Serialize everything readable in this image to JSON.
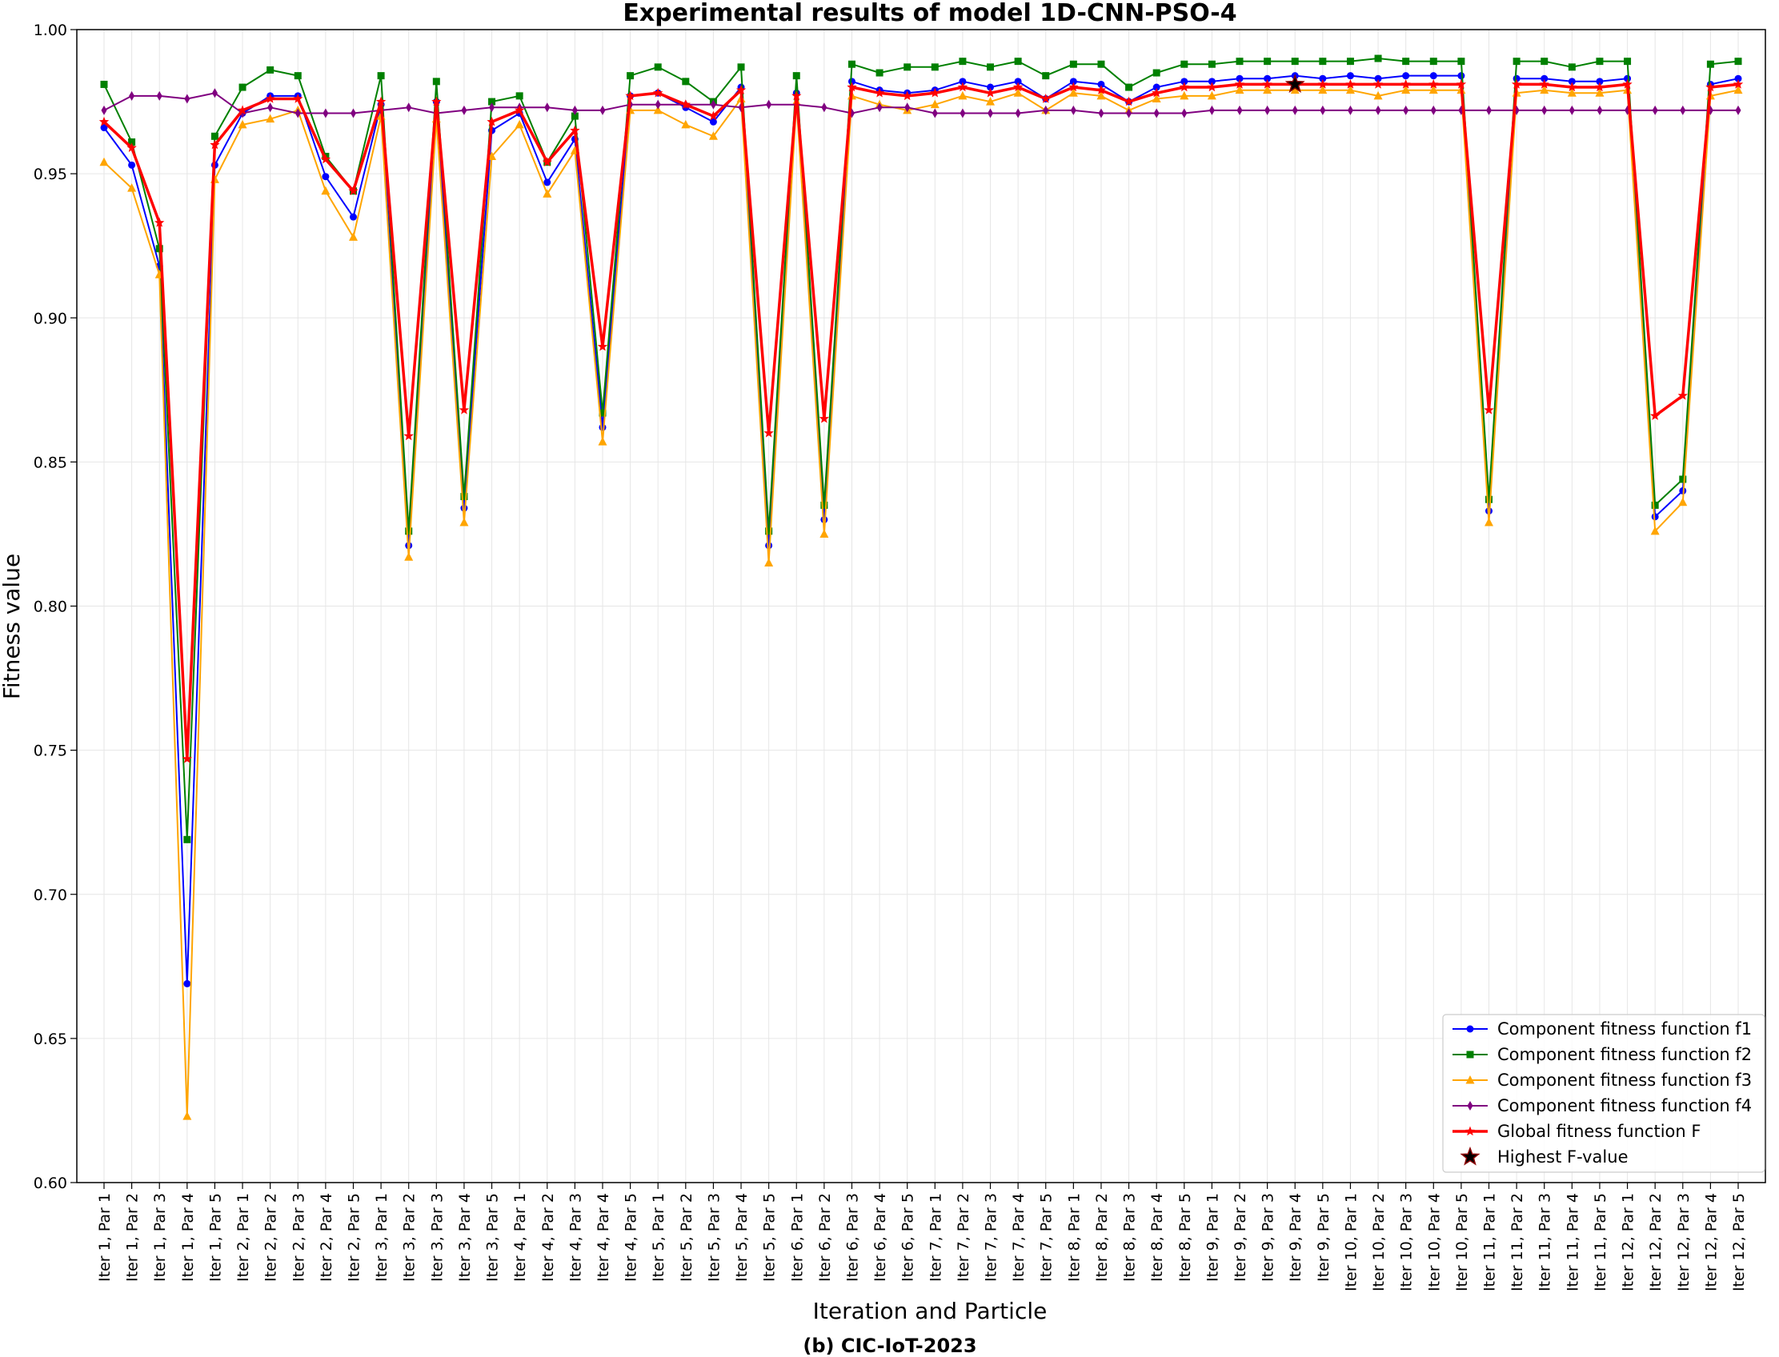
{
  "chart_data": {
    "type": "line",
    "title": "Experimental results of model 1D-CNN-PSO-4",
    "xlabel": "Iteration and Particle",
    "ylabel": "Fitness value",
    "caption": "(b) CIC-IoT-2023",
    "ylim": [
      0.6,
      1.0
    ],
    "yticks": [
      "0.60",
      "0.65",
      "0.70",
      "0.75",
      "0.80",
      "0.85",
      "0.90",
      "0.95",
      "1.00"
    ],
    "grid": true,
    "legend_position": "bottom-right",
    "categories": [
      "Iter 1, Par 1",
      "Iter 1, Par 2",
      "Iter 1, Par 3",
      "Iter 1, Par 4",
      "Iter 1, Par 5",
      "Iter 2, Par 1",
      "Iter 2, Par 2",
      "Iter 2, Par 3",
      "Iter 2, Par 4",
      "Iter 2, Par 5",
      "Iter 3, Par 1",
      "Iter 3, Par 2",
      "Iter 3, Par 3",
      "Iter 3, Par 4",
      "Iter 3, Par 5",
      "Iter 4, Par 1",
      "Iter 4, Par 2",
      "Iter 4, Par 3",
      "Iter 4, Par 4",
      "Iter 4, Par 5",
      "Iter 5, Par 1",
      "Iter 5, Par 2",
      "Iter 5, Par 3",
      "Iter 5, Par 4",
      "Iter 5, Par 5",
      "Iter 6, Par 1",
      "Iter 6, Par 2",
      "Iter 6, Par 3",
      "Iter 6, Par 4",
      "Iter 6, Par 5",
      "Iter 7, Par 1",
      "Iter 7, Par 2",
      "Iter 7, Par 3",
      "Iter 7, Par 4",
      "Iter 7, Par 5",
      "Iter 8, Par 1",
      "Iter 8, Par 2",
      "Iter 8, Par 3",
      "Iter 8, Par 4",
      "Iter 8, Par 5",
      "Iter 9, Par 1",
      "Iter 9, Par 2",
      "Iter 9, Par 3",
      "Iter 9, Par 4",
      "Iter 9, Par 5",
      "Iter 10, Par 1",
      "Iter 10, Par 2",
      "Iter 10, Par 3",
      "Iter 10, Par 4",
      "Iter 10, Par 5",
      "Iter 11, Par 1",
      "Iter 11, Par 2",
      "Iter 11, Par 3",
      "Iter 11, Par 4",
      "Iter 11, Par 5",
      "Iter 12, Par 1",
      "Iter 12, Par 2",
      "Iter 12, Par 3",
      "Iter 12, Par 4",
      "Iter 12, Par 5"
    ],
    "series": [
      {
        "name": "Component fitness function f1",
        "color": "#0000ff",
        "marker": "circle",
        "values": [
          0.966,
          0.953,
          0.918,
          0.669,
          0.953,
          0.971,
          0.977,
          0.977,
          0.949,
          0.935,
          0.974,
          0.821,
          0.975,
          0.834,
          0.965,
          0.971,
          0.947,
          0.962,
          0.862,
          0.977,
          0.978,
          0.973,
          0.968,
          0.98,
          0.821,
          0.978,
          0.83,
          0.982,
          0.979,
          0.978,
          0.979,
          0.982,
          0.98,
          0.982,
          0.976,
          0.982,
          0.981,
          0.975,
          0.98,
          0.982,
          0.982,
          0.983,
          0.983,
          0.984,
          0.983,
          0.984,
          0.983,
          0.984,
          0.984,
          0.984,
          0.833,
          0.983,
          0.983,
          0.982,
          0.982,
          0.983,
          0.831,
          0.84,
          0.981,
          0.983
        ]
      },
      {
        "name": "Component fitness function f2",
        "color": "#008000",
        "marker": "square",
        "values": [
          0.981,
          0.961,
          0.924,
          0.719,
          0.963,
          0.98,
          0.986,
          0.984,
          0.956,
          0.944,
          0.984,
          0.826,
          0.982,
          0.838,
          0.975,
          0.977,
          0.954,
          0.97,
          0.867,
          0.984,
          0.987,
          0.982,
          0.975,
          0.987,
          0.826,
          0.984,
          0.835,
          0.988,
          0.985,
          0.987,
          0.987,
          0.989,
          0.987,
          0.989,
          0.984,
          0.988,
          0.988,
          0.98,
          0.985,
          0.988,
          0.988,
          0.989,
          0.989,
          0.989,
          0.989,
          0.989,
          0.99,
          0.989,
          0.989,
          0.989,
          0.837,
          0.989,
          0.989,
          0.987,
          0.989,
          0.989,
          0.835,
          0.844,
          0.988,
          0.989
        ]
      },
      {
        "name": "Component fitness function f3",
        "color": "#ffa500",
        "marker": "triangle",
        "values": [
          0.954,
          0.945,
          0.915,
          0.623,
          0.948,
          0.967,
          0.969,
          0.972,
          0.944,
          0.928,
          0.97,
          0.817,
          0.969,
          0.829,
          0.956,
          0.967,
          0.943,
          0.958,
          0.857,
          0.972,
          0.972,
          0.967,
          0.963,
          0.976,
          0.815,
          0.975,
          0.825,
          0.977,
          0.974,
          0.972,
          0.974,
          0.977,
          0.975,
          0.978,
          0.972,
          0.978,
          0.977,
          0.972,
          0.976,
          0.977,
          0.977,
          0.979,
          0.979,
          0.979,
          0.979,
          0.979,
          0.977,
          0.979,
          0.979,
          0.979,
          0.829,
          0.978,
          0.979,
          0.978,
          0.978,
          0.979,
          0.826,
          0.836,
          0.977,
          0.979
        ]
      },
      {
        "name": "Component fitness function f4",
        "color": "#800080",
        "marker": "diamond",
        "values": [
          0.972,
          0.977,
          0.977,
          0.976,
          0.978,
          0.971,
          0.973,
          0.971,
          0.971,
          0.971,
          0.972,
          0.973,
          0.971,
          0.972,
          0.973,
          0.973,
          0.973,
          0.972,
          0.972,
          0.974,
          0.974,
          0.974,
          0.974,
          0.973,
          0.974,
          0.974,
          0.973,
          0.971,
          0.973,
          0.973,
          0.971,
          0.971,
          0.971,
          0.971,
          0.972,
          0.972,
          0.971,
          0.971,
          0.971,
          0.971,
          0.972,
          0.972,
          0.972,
          0.972,
          0.972,
          0.972,
          0.972,
          0.972,
          0.972,
          0.972,
          0.972,
          0.972,
          0.972,
          0.972,
          0.972,
          0.972,
          0.972,
          0.972,
          0.972,
          0.972
        ]
      },
      {
        "name": "Global fitness function F",
        "color": "#ff0000",
        "marker": "star",
        "thick": true,
        "values": [
          0.968,
          0.959,
          0.933,
          0.747,
          0.96,
          0.972,
          0.976,
          0.976,
          0.955,
          0.944,
          0.975,
          0.859,
          0.975,
          0.868,
          0.968,
          0.972,
          0.954,
          0.965,
          0.89,
          0.977,
          0.978,
          0.974,
          0.97,
          0.979,
          0.86,
          0.977,
          0.865,
          0.98,
          0.978,
          0.977,
          0.978,
          0.98,
          0.978,
          0.98,
          0.976,
          0.98,
          0.979,
          0.975,
          0.978,
          0.98,
          0.98,
          0.981,
          0.981,
          0.981,
          0.981,
          0.981,
          0.981,
          0.981,
          0.981,
          0.981,
          0.868,
          0.981,
          0.981,
          0.98,
          0.98,
          0.981,
          0.866,
          0.873,
          0.98,
          0.981
        ]
      }
    ],
    "highlight": {
      "name": "Highest F-value",
      "category": "Iter 9, Par 4",
      "value": 0.981
    }
  }
}
